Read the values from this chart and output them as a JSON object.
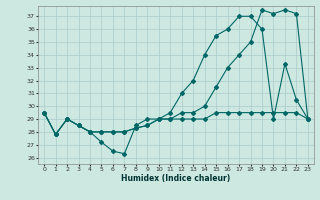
{
  "xlabel": "Humidex (Indice chaleur)",
  "background_color": "#cce8e0",
  "grid_color": "#aacccc",
  "line_color": "#006666",
  "xlim": [
    -0.5,
    23.5
  ],
  "ylim": [
    25.5,
    37.8
  ],
  "yticks": [
    26,
    27,
    28,
    29,
    30,
    31,
    32,
    33,
    34,
    35,
    36,
    37
  ],
  "xticks": [
    0,
    1,
    2,
    3,
    4,
    5,
    6,
    7,
    8,
    9,
    10,
    11,
    12,
    13,
    14,
    15,
    16,
    17,
    18,
    19,
    20,
    21,
    22,
    23
  ],
  "series1_x": [
    0,
    1,
    2,
    3,
    4,
    5,
    6,
    7,
    8,
    9,
    10,
    11,
    12,
    13,
    14,
    15,
    16,
    17,
    18,
    19,
    20,
    21,
    22,
    23
  ],
  "series1_y": [
    29.5,
    27.8,
    29.0,
    28.5,
    28.0,
    27.2,
    26.5,
    26.3,
    28.5,
    29.0,
    29.0,
    29.5,
    31.0,
    32.0,
    34.0,
    35.5,
    36.0,
    37.0,
    37.0,
    36.0,
    29.0,
    33.3,
    30.5,
    29.0
  ],
  "series2_x": [
    0,
    1,
    2,
    3,
    4,
    5,
    6,
    7,
    8,
    9,
    10,
    11,
    12,
    13,
    14,
    15,
    16,
    17,
    18,
    19,
    20,
    21,
    22,
    23
  ],
  "series2_y": [
    29.5,
    27.8,
    29.0,
    28.5,
    28.0,
    28.0,
    28.0,
    28.0,
    28.3,
    28.5,
    29.0,
    29.0,
    29.5,
    29.5,
    30.0,
    31.5,
    33.0,
    34.0,
    35.0,
    37.5,
    37.2,
    37.5,
    37.2,
    29.0
  ],
  "series3_x": [
    0,
    1,
    2,
    3,
    4,
    5,
    6,
    7,
    8,
    9,
    10,
    11,
    12,
    13,
    14,
    15,
    16,
    17,
    18,
    19,
    20,
    21,
    22,
    23
  ],
  "series3_y": [
    29.5,
    27.8,
    29.0,
    28.5,
    28.0,
    28.0,
    28.0,
    28.0,
    28.3,
    28.5,
    29.0,
    29.0,
    29.0,
    29.0,
    29.0,
    29.5,
    29.5,
    29.5,
    29.5,
    29.5,
    29.5,
    29.5,
    29.5,
    29.0
  ]
}
